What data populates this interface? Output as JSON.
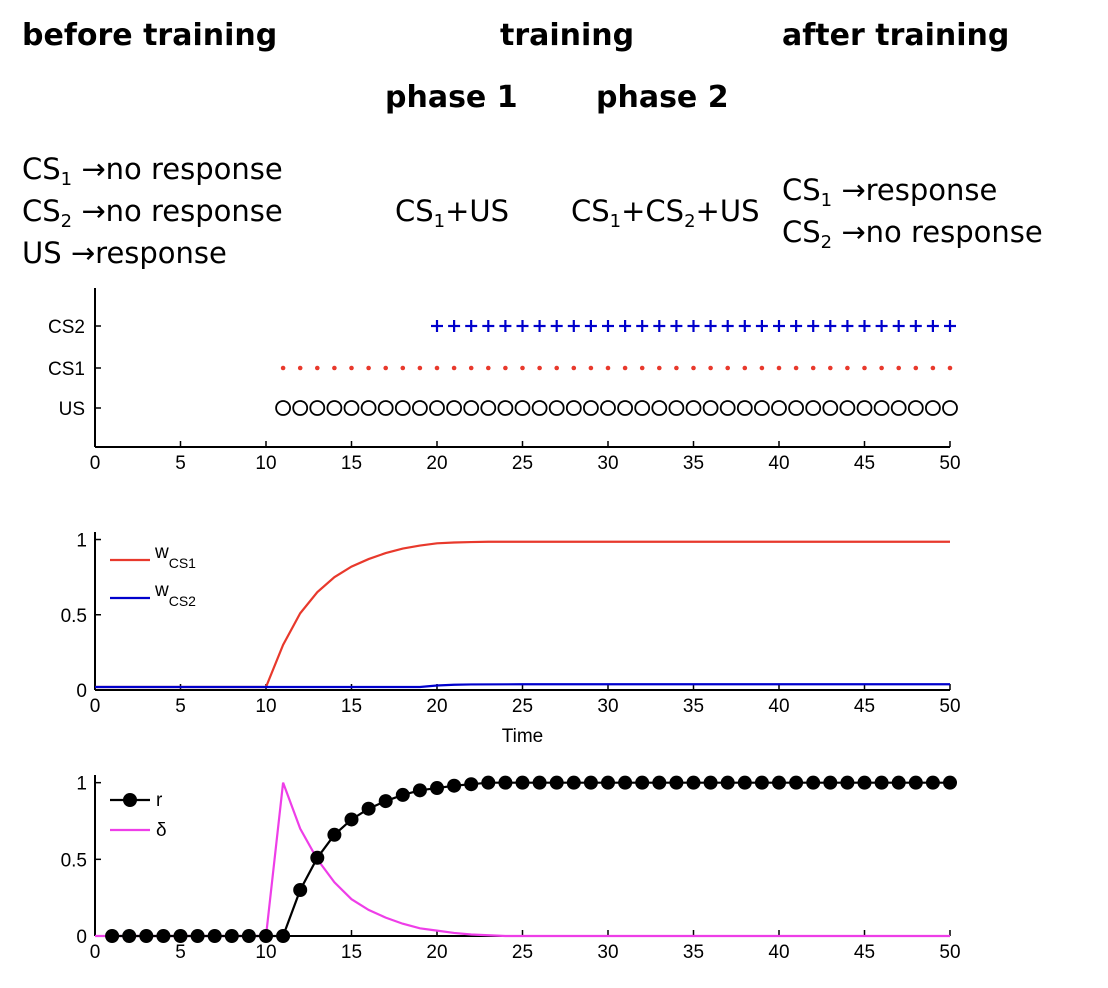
{
  "headers": {
    "before": "before training",
    "training": "training",
    "after": "after training",
    "phase1": "phase 1",
    "phase2": "phase 2"
  },
  "before_lines": [
    {
      "cs": "CS",
      "sub": "1",
      "rest": " →no response"
    },
    {
      "cs": "CS",
      "sub": "2",
      "rest": " →no response"
    },
    {
      "cs": "US",
      "sub": "",
      "rest": " →response"
    }
  ],
  "phase1_text": {
    "a": "CS",
    "a_sub": "1",
    "b": "+US"
  },
  "phase2_text": {
    "a": "CS",
    "a_sub": "1",
    "b": "+CS",
    "b_sub": "2",
    "c": "+US"
  },
  "after_lines": [
    {
      "cs": "CS",
      "sub": "1",
      "rest": " →response"
    },
    {
      "cs": "CS",
      "sub": "2",
      "rest": " →no response"
    }
  ],
  "chart_data": [
    {
      "type": "scatter",
      "xlim": [
        0,
        50
      ],
      "xticks": [
        0,
        5,
        10,
        15,
        20,
        25,
        30,
        35,
        40,
        45,
        50
      ],
      "yticklabels": [
        "US",
        "CS1",
        "CS2"
      ],
      "series": [
        {
          "name": "US",
          "marker": "o",
          "color": "#000000",
          "x_start": 11,
          "x_end": 50
        },
        {
          "name": "CS1",
          "marker": ".",
          "color": "#e8392c",
          "x_start": 11,
          "x_end": 50
        },
        {
          "name": "CS2",
          "marker": "+",
          "color": "#0000cc",
          "x_start": 20,
          "x_end": 50
        }
      ]
    },
    {
      "type": "line",
      "xlim": [
        0,
        50
      ],
      "ylim": [
        0,
        1.05
      ],
      "xticks": [
        0,
        5,
        10,
        15,
        20,
        25,
        30,
        35,
        40,
        45,
        50
      ],
      "yticks": [
        0,
        0.5,
        1
      ],
      "xlabel": "Time",
      "legend": [
        {
          "name": "w",
          "sub": "CS1",
          "color": "#e8392c"
        },
        {
          "name": "w",
          "sub": "CS2",
          "color": "#0000cc"
        }
      ],
      "series": [
        {
          "name": "wCS1",
          "color": "#e8392c",
          "x": [
            0,
            10,
            11,
            12,
            13,
            14,
            15,
            16,
            17,
            18,
            19,
            20,
            21,
            22,
            23,
            24,
            25,
            30,
            35,
            40,
            45,
            50
          ],
          "y": [
            0.02,
            0.02,
            0.3,
            0.51,
            0.65,
            0.75,
            0.82,
            0.87,
            0.91,
            0.94,
            0.96,
            0.975,
            0.98,
            0.983,
            0.985,
            0.985,
            0.985,
            0.985,
            0.985,
            0.985,
            0.985,
            0.985
          ]
        },
        {
          "name": "wCS2",
          "color": "#0000cc",
          "x": [
            0,
            19,
            20,
            21,
            22,
            25,
            30,
            35,
            40,
            45,
            50
          ],
          "y": [
            0.02,
            0.02,
            0.03,
            0.035,
            0.037,
            0.038,
            0.038,
            0.038,
            0.038,
            0.038,
            0.038
          ]
        }
      ]
    },
    {
      "type": "line",
      "xlim": [
        0,
        50
      ],
      "ylim": [
        0,
        1.05
      ],
      "xticks": [
        0,
        5,
        10,
        15,
        20,
        25,
        30,
        35,
        40,
        45,
        50
      ],
      "yticks": [
        0,
        0.5,
        1
      ],
      "legend": [
        {
          "name": "r",
          "color": "#000000",
          "marker": "filled-circle"
        },
        {
          "name": "δ",
          "color": "#ee3ee8"
        }
      ],
      "series": [
        {
          "name": "r",
          "color": "#000000",
          "x": [
            1,
            2,
            3,
            4,
            5,
            6,
            7,
            8,
            9,
            10,
            11,
            12,
            13,
            14,
            15,
            16,
            17,
            18,
            19,
            20,
            21,
            22,
            23,
            24,
            25,
            26,
            27,
            28,
            29,
            30,
            31,
            32,
            33,
            34,
            35,
            36,
            37,
            38,
            39,
            40,
            41,
            42,
            43,
            44,
            45,
            46,
            47,
            48,
            49,
            50
          ],
          "y": [
            0,
            0,
            0,
            0,
            0,
            0,
            0,
            0,
            0,
            0,
            0,
            0.3,
            0.51,
            0.66,
            0.76,
            0.83,
            0.88,
            0.92,
            0.95,
            0.965,
            0.98,
            0.99,
            1,
            1,
            1,
            1,
            1,
            1,
            1,
            1,
            1,
            1,
            1,
            1,
            1,
            1,
            1,
            1,
            1,
            1,
            1,
            1,
            1,
            1,
            1,
            1,
            1,
            1,
            1,
            1
          ]
        },
        {
          "name": "δ",
          "color": "#ee3ee8",
          "x": [
            0,
            10,
            11,
            12,
            13,
            14,
            15,
            16,
            17,
            18,
            19,
            20,
            21,
            22,
            23,
            24,
            25,
            30,
            35,
            40,
            45,
            50
          ],
          "y": [
            0,
            0,
            1.0,
            0.7,
            0.5,
            0.35,
            0.24,
            0.17,
            0.12,
            0.08,
            0.05,
            0.035,
            0.02,
            0.01,
            0.005,
            0,
            0,
            0,
            0,
            0,
            0,
            0
          ]
        }
      ]
    }
  ]
}
